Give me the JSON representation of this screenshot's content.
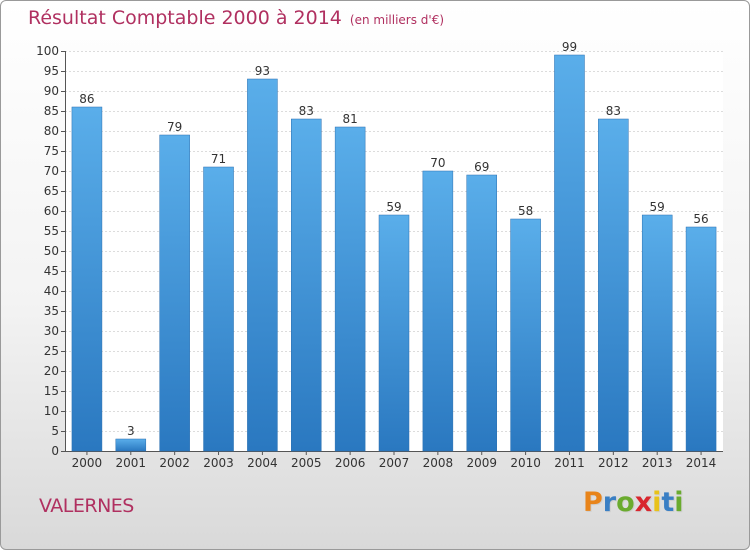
{
  "title": "Résultat Comptable 2000 à 2014",
  "subtitle": "(en milliers d'€)",
  "location": "VALERNES",
  "logo": {
    "text": "Proxiti",
    "letters": [
      "P",
      "r",
      "o",
      "x",
      "i",
      "t",
      "i"
    ],
    "colors": [
      "#e8841a",
      "#3a7fc4",
      "#6aab2e",
      "#d8262e",
      "#e8c21a",
      "#3a7fc4",
      "#6aab2e"
    ]
  },
  "chart_data": {
    "type": "bar",
    "categories": [
      "2000",
      "2001",
      "2002",
      "2003",
      "2004",
      "2005",
      "2006",
      "2007",
      "2008",
      "2009",
      "2010",
      "2011",
      "2012",
      "2013",
      "2014"
    ],
    "values": [
      86,
      3,
      79,
      71,
      93,
      83,
      81,
      59,
      70,
      69,
      58,
      99,
      83,
      59,
      56
    ],
    "ylim": [
      0,
      100
    ],
    "yticks": [
      0,
      5,
      10,
      15,
      20,
      25,
      30,
      35,
      40,
      45,
      50,
      55,
      60,
      65,
      70,
      75,
      80,
      85,
      90,
      95,
      100
    ],
    "grid": true,
    "bar_color": "#3d8fd6"
  }
}
